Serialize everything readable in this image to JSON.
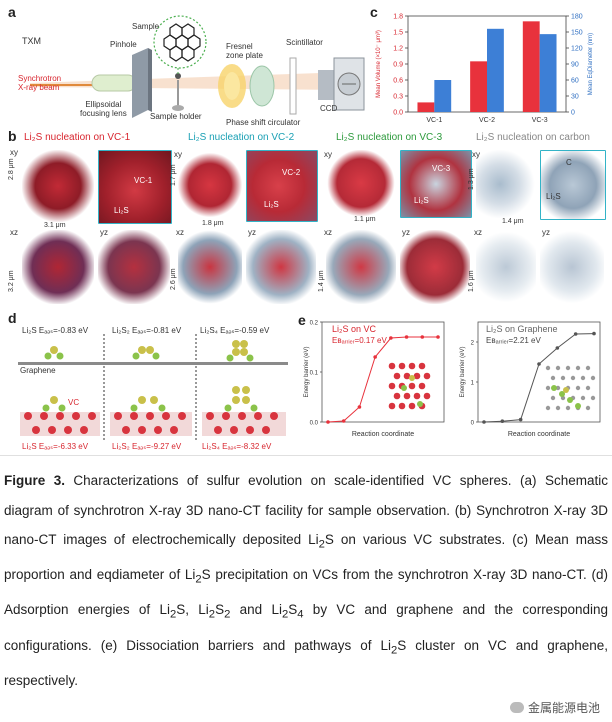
{
  "panel_a": {
    "label": "a",
    "txm": "TXM",
    "beam": "Synchrotron\nX-ray beam",
    "ellipsoidal": "Ellipsoidal\nfocusing lens",
    "pinhole": "Pinhole",
    "sample": "Sample",
    "sample_holder": "Sample holder",
    "fresnel": "Fresnel\nzone plate",
    "scintillator": "Scintillator",
    "phase": "Phase shift circulator",
    "ccd": "CCD"
  },
  "panel_b": {
    "label": "b",
    "t1": "Li₂S nucleation on VC-1",
    "t2": "Li₂S nucleation on VC-2",
    "t3": "Li₂S nucleation on VC-3",
    "t4": "Li₂S nucleation on carbon",
    "xy": "xy",
    "xz": "xz",
    "yz": "yz",
    "s1": "2.8 μm",
    "s2": "3.1 μm",
    "s3": "3.2 μm",
    "s4": "1.7 μm",
    "s5": "1.8 μm",
    "s6": "2.6 μm",
    "s7": "1.1 μm",
    "s8": "1.4 μm",
    "s9": "1.3 μm",
    "s10": "1.4 μm",
    "s11": "1.6 μm",
    "vc1": "VC-1",
    "vc2": "VC-2",
    "vc3": "VC-3",
    "c": "C",
    "li2s": "Li₂S"
  },
  "panel_d": {
    "label": "d",
    "g1": "Li₂S Eₐₔₛ=-0.83 eV",
    "g2": "Li₂S₂ Eₐₔₛ=-0.81 eV",
    "g3": "Li₂S₄ Eₐₔₛ=-0.59 eV",
    "graphene": "Graphene",
    "vc": "VC",
    "v1": "Li₂S Eₐₔₛ=-6.33 eV",
    "v2": "Li₂S₂ Eₐₔₛ=-9.27 eV",
    "v3": "Li₂S₄ Eₐₔₛ=-8.32 eV"
  },
  "panel_e": {
    "label": "e",
    "vc_title": "Li₂S on VC",
    "vc_barrier": "Eʙₐᵣᵣᵢₑᵣ=0.17 eV",
    "gr_title": "Li₂S on Graphene",
    "gr_barrier": "Eʙₐᵣᵣᵢₑᵣ=2.21 eV",
    "ylabel": "Energy barrier (eV)",
    "xlabel": "Reaction coordinate"
  },
  "chart_data": [
    {
      "type": "bar",
      "panel": "c",
      "categories": [
        "VC-1",
        "VC-2",
        "VC-3"
      ],
      "series": [
        {
          "name": "Mean Volume",
          "axis": "left",
          "color": "#e8323c",
          "values": [
            0.18,
            0.95,
            1.7
          ]
        },
        {
          "name": "Mean EqDiameter",
          "axis": "right",
          "color": "#3d7fd6",
          "values": [
            60,
            156,
            146
          ]
        }
      ],
      "ylabel": "Mean Volume (×10⁻⁲ μm³)",
      "y2label": "Mean EqDiameter (nm)",
      "ylim": [
        0,
        1.8
      ],
      "y2lim": [
        0,
        180
      ],
      "yticks": [
        "0.0",
        "0.3",
        "0.6",
        "0.9",
        "1.2",
        "1.5",
        "1.8"
      ],
      "y2ticks": [
        "0",
        "30",
        "60",
        "90",
        "120",
        "150",
        "180"
      ]
    },
    {
      "type": "line",
      "panel": "e-VC",
      "x": [
        0,
        1,
        2,
        3,
        4,
        5,
        6,
        7
      ],
      "y": [
        0.0,
        0.002,
        0.03,
        0.13,
        0.168,
        0.17,
        0.17,
        0.17
      ],
      "ylabel": "Energy barrier (eV)",
      "xlabel": "Reaction coordinate",
      "yticks": [
        "0.0",
        "0.1",
        "0.2"
      ],
      "ylim": [
        0,
        0.2
      ],
      "color": "#e8323c"
    },
    {
      "type": "line",
      "panel": "e-Graphene",
      "x": [
        0,
        1,
        2,
        3,
        4,
        5,
        6
      ],
      "y": [
        0.0,
        0.02,
        0.06,
        1.45,
        1.85,
        2.2,
        2.21
      ],
      "ylabel": "Energy barrier (eV)",
      "xlabel": "Reaction coordinate",
      "yticks": [
        "0",
        "1",
        "2"
      ],
      "ylim": [
        0,
        2.5
      ],
      "color": "#555555"
    }
  ],
  "caption": {
    "fig": "Figure 3.",
    "body1": " Characterizations of sulfur evolution on scale-identified VC spheres. (a) Schematic diagram of synchrotron X-ray 3D nano-CT facility for sample observation. (b) Synchrotron X-ray 3D nano-CT images of electrochemically deposited Li",
    "sub1": "2",
    "body2": "S on various VC substrates. (c) Mean mass proportion and eqdiameter of Li",
    "sub2": "2",
    "body3": "S precipitation on VCs from the synchrotron X-ray 3D nano-CT. (d) Adsorption energies of Li",
    "sub3": "2",
    "body4": "S, Li",
    "sub4": "2",
    "body5": "S",
    "sub5": "2",
    "body6": " and Li",
    "sub6": "2",
    "body7": "S",
    "sub7": "4",
    "body8": " by VC and graphene and the corresponding configurations. (e) Dissociation barriers and pathways of Li",
    "sub8": "2",
    "body9": "S cluster on VC and graphene, respectively."
  },
  "watermark": "金属能源电池"
}
